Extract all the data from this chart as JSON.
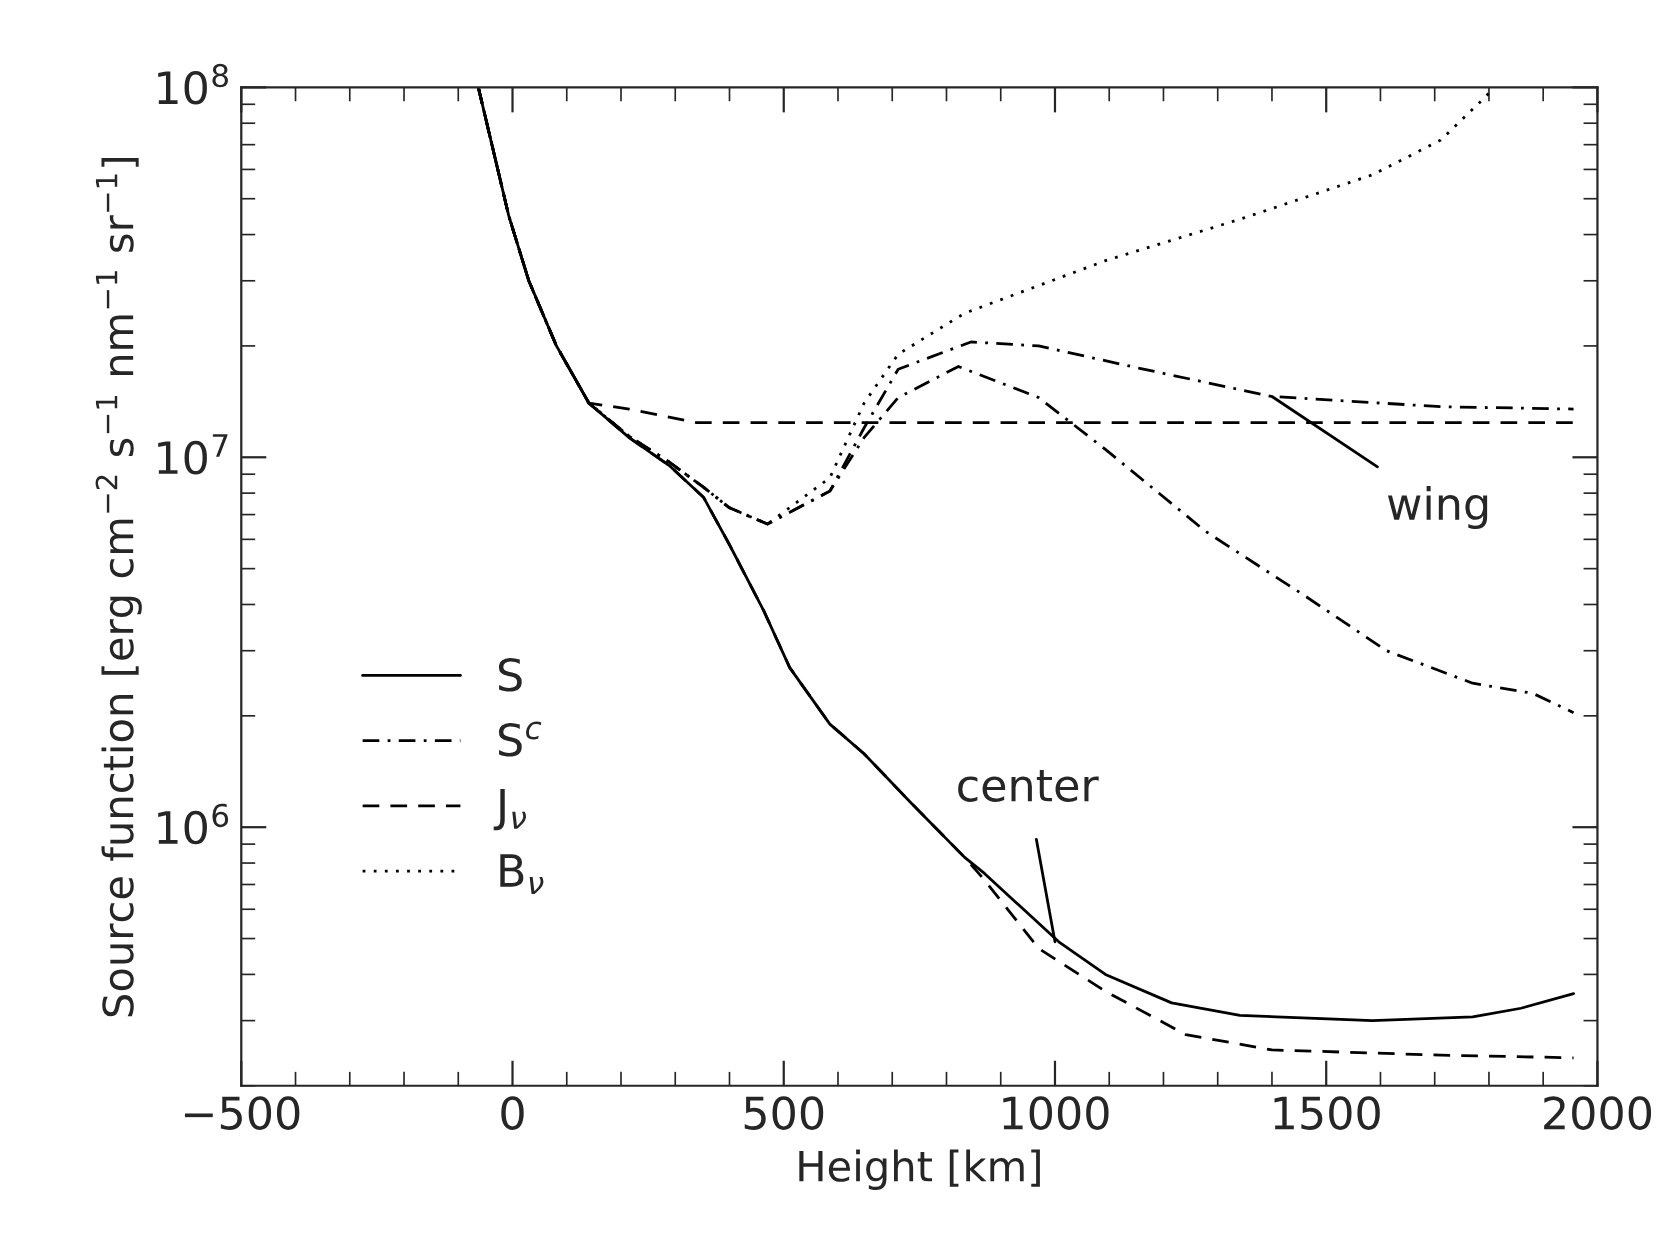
{
  "chart_data": {
    "type": "line",
    "xlabel": "Height [km]",
    "ylabel": "Source function [erg cm$^{−2}$ s$^{−1}$ nm$^{−1}$ sr$^{−1}$]",
    "log": "y",
    "xlim": [
      -500,
      2000
    ],
    "xticks": [
      -500,
      0,
      500,
      1000,
      1500,
      2000
    ],
    "ylim": [
      200000,
      100000000
    ],
    "yticks": [
      {
        "value": 1000000,
        "label": "10$^{6}$"
      },
      {
        "value": 10000000,
        "label": "10$^{7}$"
      },
      {
        "value": 100000000,
        "label": "10$^{8}$"
      }
    ],
    "grid": false,
    "legend": "bottom left",
    "marker": "none",
    "series": [
      {
        "name": "S",
        "color": "#000000",
        "line_style": "solid",
        "x": [
          -63,
          -7,
          30,
          81,
          141,
          215,
          289,
          352,
          400,
          463,
          511,
          585,
          648,
          733,
          833,
          870,
          1007,
          1093,
          1215,
          1341,
          1585,
          1770,
          1859,
          1956
        ],
        "values": [
          100000000,
          45000000,
          30000000,
          20000000,
          14000000,
          11300000,
          9500000,
          7800000,
          5800000,
          3850000,
          2700000,
          1900000,
          1580000,
          1170000,
          830000,
          750000,
          490000,
          400000,
          335000,
          310000,
          300000,
          307000,
          324000,
          355000
        ]
      },
      {
        "name": "S$^{c}$",
        "color": "#000000",
        "line_style": "dashdot",
        "x": [
          -63,
          -7,
          30,
          81,
          141,
          215,
          289,
          352,
          400,
          470,
          585,
          648,
          711,
          845,
          970,
          1156,
          1400,
          1711,
          1956
        ],
        "values": [
          100000000,
          45000000,
          30000000,
          20000000,
          14000000,
          11400000,
          9700000,
          8300000,
          7300000,
          6600000,
          8100000,
          12000000,
          17300000,
          20500000,
          20000000,
          17400000,
          14600000,
          13700000,
          13500000
        ]
      },
      {
        "color": "#000000",
        "line_style": "dashdot",
        "x": [
          -63,
          -7,
          30,
          81,
          141,
          215,
          289,
          352,
          400,
          470,
          585,
          648,
          711,
          822,
          970,
          1093,
          1278,
          1463,
          1611,
          1770,
          1881,
          1956
        ],
        "values": [
          100000000,
          45000000,
          30000000,
          20000000,
          14000000,
          11400000,
          9700000,
          8300000,
          7300000,
          6600000,
          8100000,
          11300000,
          14500000,
          17600000,
          14500000,
          10500000,
          6300000,
          4200000,
          3000000,
          2450000,
          2300000,
          2040000
        ]
      },
      {
        "name": "J$_{ν}$",
        "color": "#000000",
        "line_style": "dashed",
        "x": [
          -63,
          -7,
          30,
          81,
          141,
          215,
          340,
          500,
          1000,
          1500,
          1956
        ],
        "values": [
          100000000,
          45000000,
          30000000,
          20000000,
          14000000,
          13500000,
          12400000,
          12400000,
          12400000,
          12400000,
          12400000
        ]
      },
      {
        "color": "#000000",
        "line_style": "dashed",
        "x": [
          -63,
          -7,
          30,
          81,
          141,
          215,
          289,
          352,
          400,
          463,
          511,
          585,
          648,
          733,
          833,
          870,
          970,
          1093,
          1241,
          1400,
          1711,
          1956
        ],
        "values": [
          100000000,
          45000000,
          30000000,
          20000000,
          14000000,
          11300000,
          9500000,
          7800000,
          5800000,
          3850000,
          2700000,
          1900000,
          1580000,
          1170000,
          830000,
          720000,
          470000,
          360000,
          275000,
          250000,
          242000,
          238000
        ]
      },
      {
        "name": "B$_{ν}$",
        "color": "#000000",
        "line_style": "dotted",
        "x": [
          -63,
          -7,
          30,
          81,
          141,
          215,
          289,
          352,
          400,
          470,
          585,
          648,
          711,
          833,
          1093,
          1341,
          1585,
          1711,
          1796,
          1807
        ],
        "values": [
          100000000,
          45000000,
          30000000,
          20000000,
          14000000,
          11400000,
          9700000,
          8300000,
          7300000,
          6600000,
          8800000,
          14000000,
          19000000,
          24500000,
          34000000,
          44000000,
          58000000,
          72000000,
          95000000,
          100000000
        ]
      }
    ],
    "annotations": [
      {
        "text": "wing",
        "x": 1400,
        "y": 14600000
      },
      {
        "text": "center",
        "x": 1000,
        "y": 490000
      }
    ]
  }
}
